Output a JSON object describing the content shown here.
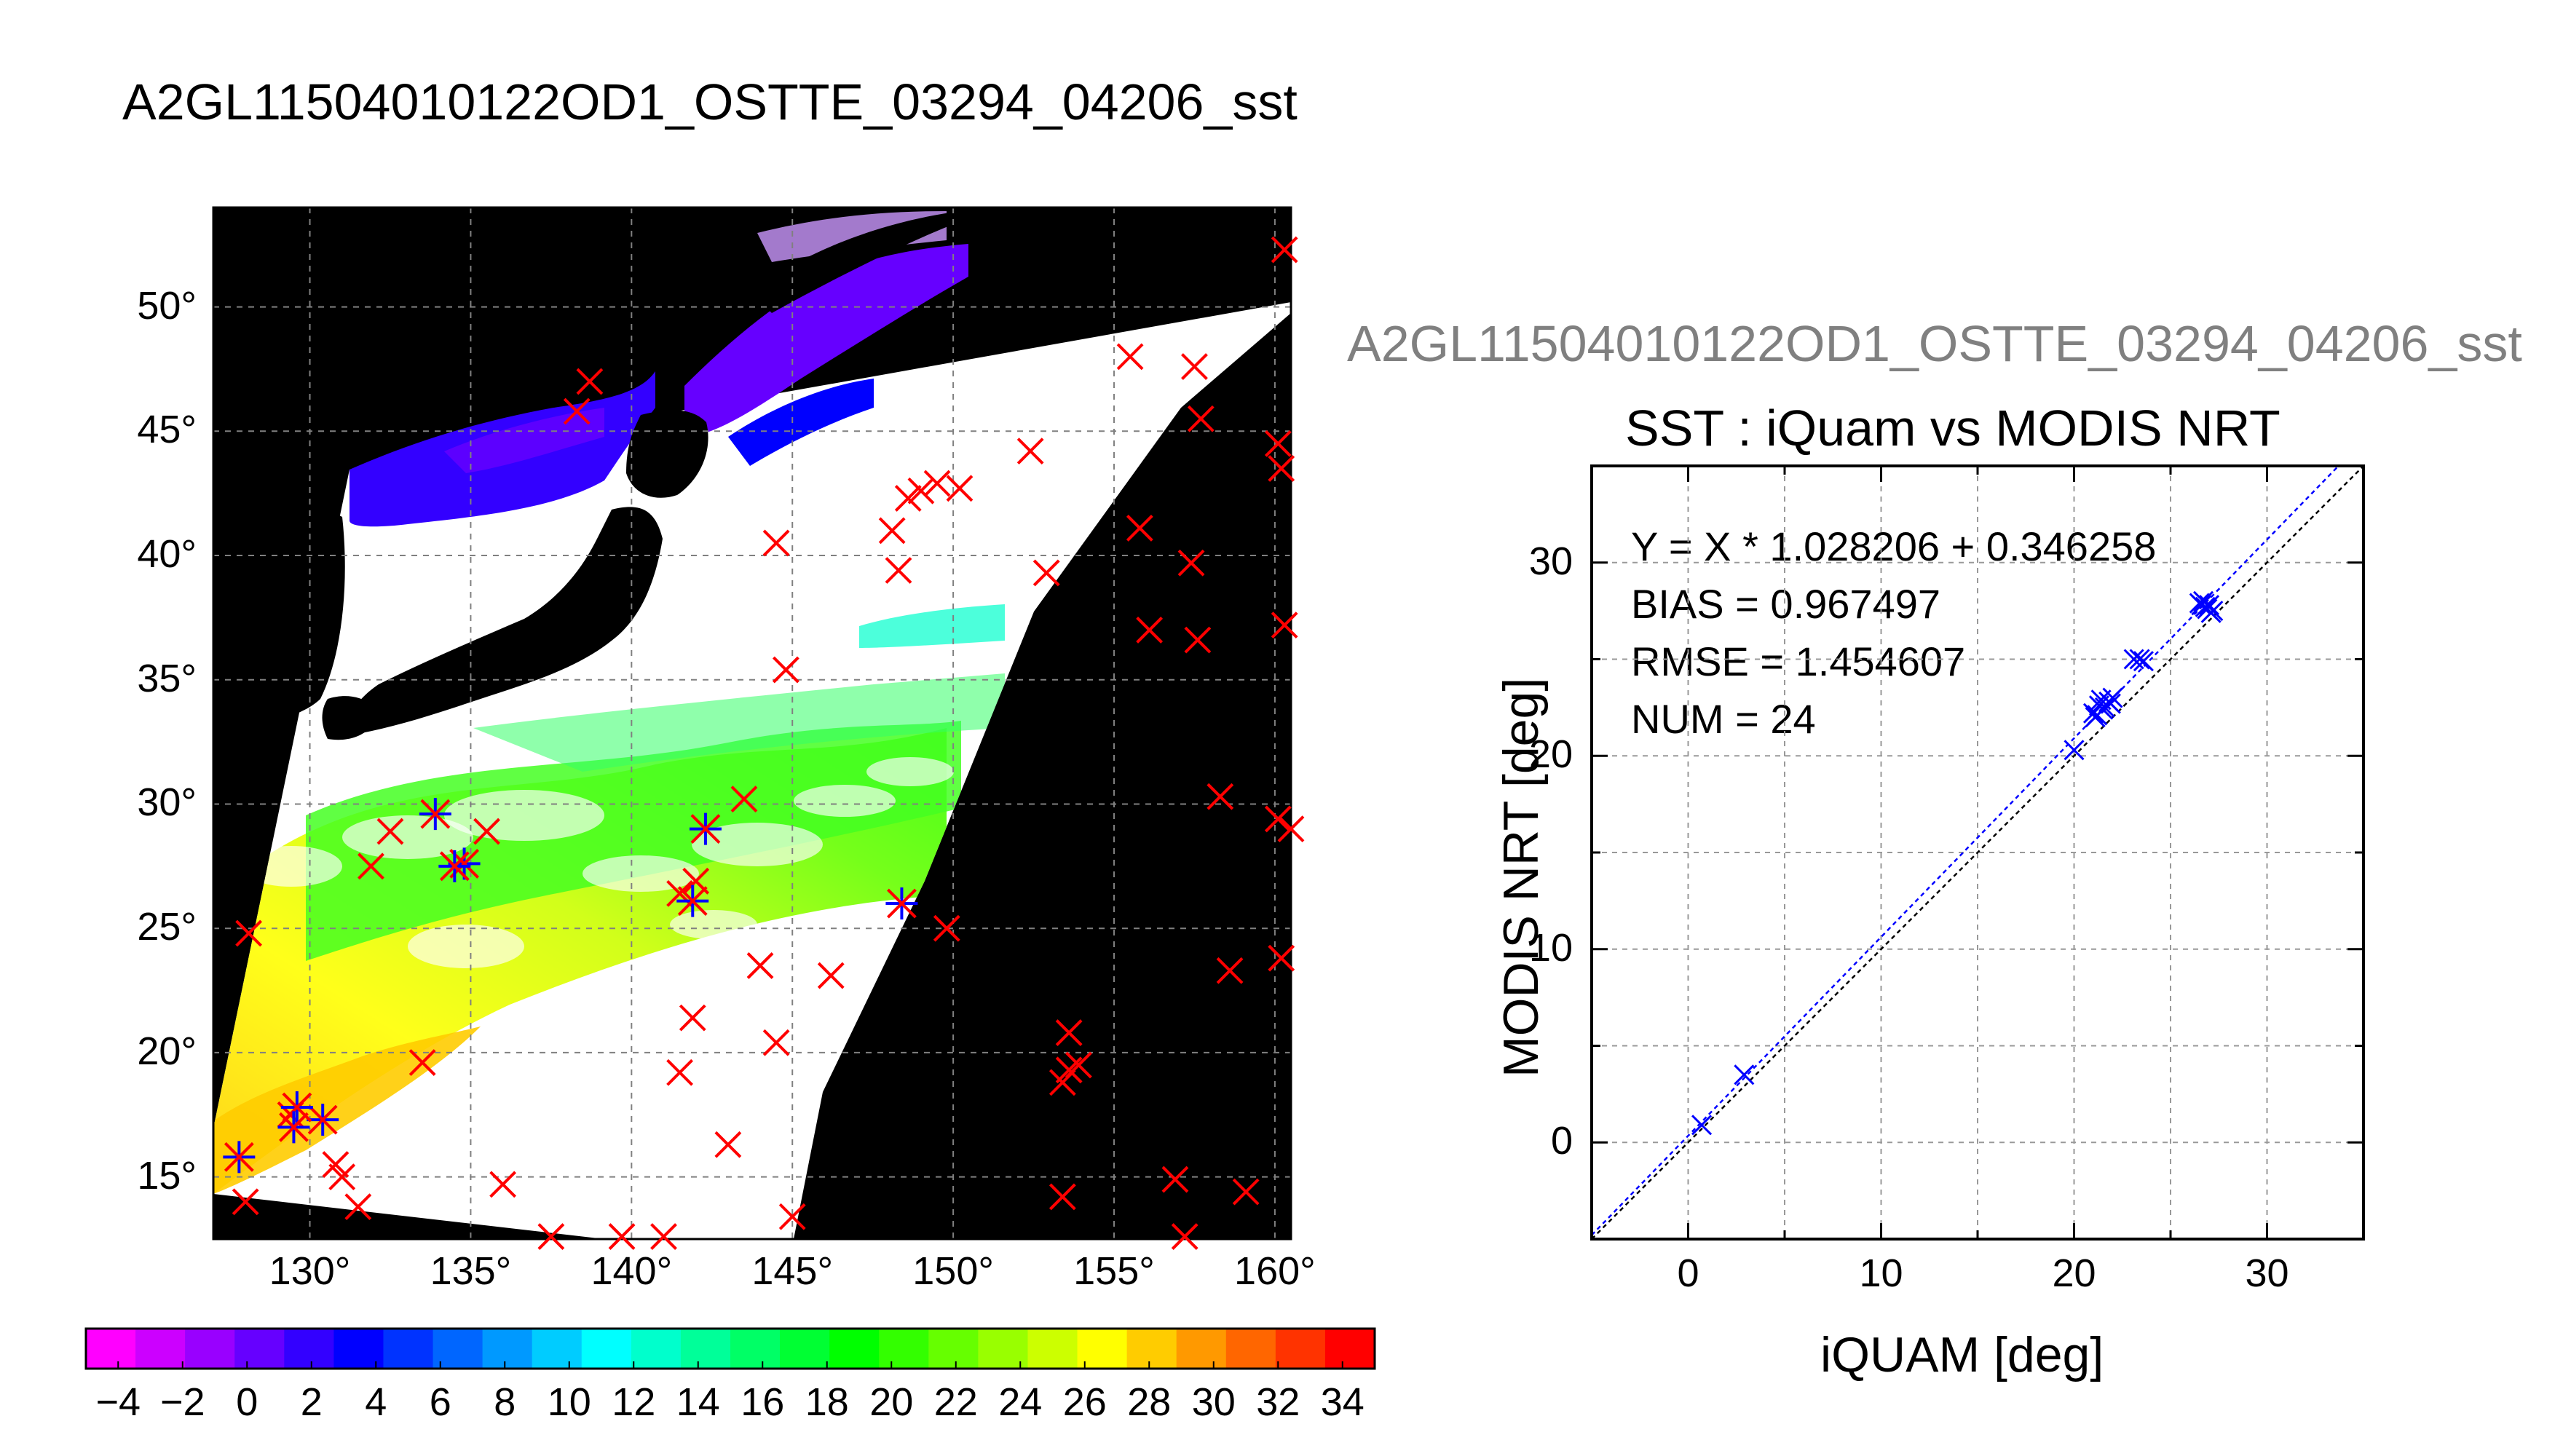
{
  "main_title": "A2GL11504010122OD1_OSTTE_03294_04206_sst",
  "scatter_title_overflow": "A2GL11504010122OD1_OSTTE_03294_04206_sst",
  "chart_data": [
    {
      "type": "heatmap",
      "map_type": "satellite SST swath map",
      "x_ticks": [
        "130°",
        "135°",
        "140°",
        "145°",
        "150°",
        "155°",
        "160°"
      ],
      "y_ticks": [
        "15°",
        "20°",
        "25°",
        "30°",
        "35°",
        "40°",
        "45°",
        "50°"
      ],
      "x_range": [
        127,
        160.5
      ],
      "y_range": [
        12.5,
        54
      ],
      "colorbar": {
        "ticks": [
          "−4",
          "−2",
          "0",
          "2",
          "4",
          "6",
          "8",
          "10",
          "12",
          "14",
          "16",
          "18",
          "20",
          "22",
          "24",
          "26",
          "28",
          "30",
          "32",
          "34"
        ],
        "range": [
          -5,
          35
        ],
        "colors": [
          "#ff00ff",
          "#cc00ff",
          "#9900ff",
          "#6600ff",
          "#3300ff",
          "#0000ff",
          "#0033ff",
          "#0066ff",
          "#0099ff",
          "#00ccff",
          "#00ffff",
          "#00ffcc",
          "#00ff99",
          "#00ff66",
          "#00ff33",
          "#00ff00",
          "#33ff00",
          "#66ff00",
          "#99ff00",
          "#ccff00",
          "#ffff00",
          "#ffcc00",
          "#ff9900",
          "#ff6600",
          "#ff3300",
          "#ff0000"
        ]
      },
      "matchups": [
        [
          130.4,
          17.3
        ],
        [
          129.6,
          17.8
        ],
        [
          133.9,
          29.6
        ],
        [
          134.8,
          27.6
        ],
        [
          142.3,
          29.0
        ],
        [
          141.9,
          26.1
        ],
        [
          148.4,
          26.0
        ],
        [
          127.8,
          15.8
        ],
        [
          129.5,
          17.0
        ],
        [
          134.5,
          27.5
        ]
      ],
      "other_points": [
        [
          160.3,
          52.3
        ],
        [
          128.1,
          24.8
        ],
        [
          129.4,
          17.5
        ],
        [
          128.0,
          14.0
        ],
        [
          130.8,
          15.5
        ],
        [
          131.5,
          13.8
        ],
        [
          131.9,
          27.5
        ],
        [
          132.5,
          28.9
        ],
        [
          133.5,
          19.6
        ],
        [
          135.5,
          28.9
        ],
        [
          136.0,
          14.7
        ],
        [
          137.5,
          12.6
        ],
        [
          139.7,
          12.6
        ],
        [
          141.0,
          12.6
        ],
        [
          141.5,
          19.2
        ],
        [
          141.9,
          21.4
        ],
        [
          141.5,
          26.4
        ],
        [
          142.0,
          26.9
        ],
        [
          143.0,
          16.3
        ],
        [
          143.5,
          30.2
        ],
        [
          144.0,
          23.5
        ],
        [
          144.5,
          20.4
        ],
        [
          144.8,
          35.4
        ],
        [
          144.5,
          40.5
        ],
        [
          145.0,
          13.4
        ],
        [
          146.2,
          23.1
        ],
        [
          148.1,
          41.0
        ],
        [
          148.3,
          39.4
        ],
        [
          148.6,
          42.3
        ],
        [
          149.0,
          42.6
        ],
        [
          149.5,
          42.9
        ],
        [
          149.8,
          25.0
        ],
        [
          150.2,
          42.7
        ],
        [
          152.4,
          44.2
        ],
        [
          152.9,
          39.3
        ],
        [
          153.4,
          14.2
        ],
        [
          153.6,
          20.8
        ],
        [
          153.4,
          18.8
        ],
        [
          153.6,
          19.3
        ],
        [
          153.9,
          19.5
        ],
        [
          156.1,
          37.0
        ],
        [
          156.9,
          14.9
        ],
        [
          157.2,
          12.6
        ],
        [
          157.6,
          36.6
        ],
        [
          157.4,
          39.7
        ],
        [
          157.7,
          45.5
        ],
        [
          157.5,
          47.6
        ],
        [
          155.5,
          48.0
        ],
        [
          155.8,
          41.1
        ],
        [
          158.3,
          30.3
        ],
        [
          158.6,
          23.3
        ],
        [
          159.1,
          14.4
        ],
        [
          160.1,
          44.5
        ],
        [
          160.2,
          43.5
        ],
        [
          160.3,
          37.2
        ],
        [
          160.1,
          29.4
        ],
        [
          160.2,
          23.8
        ],
        [
          160.5,
          29.0
        ],
        [
          131.0,
          15.0
        ],
        [
          138.3,
          45.8
        ],
        [
          138.7,
          47.0
        ]
      ]
    },
    {
      "type": "scatter",
      "title": "SST : iQuam vs MODIS NRT",
      "xlabel": "iQUAM [deg]",
      "ylabel": "MODIS NRT [deg]",
      "xlim": [
        -5,
        35
      ],
      "ylim": [
        -5,
        35
      ],
      "x_ticks": [
        "0",
        "10",
        "20",
        "30"
      ],
      "y_ticks": [
        "0",
        "10",
        "20",
        "30"
      ],
      "grid": true,
      "annotations": [
        "Y = X * 1.028206 + 0.346258",
        "BIAS = 0.967497",
        "RMSE = 1.454607",
        "NUM = 24"
      ],
      "fit": {
        "slope": 1.028206,
        "intercept": 0.346258
      },
      "x": [
        0.7,
        2.9,
        20.0,
        21.0,
        21.3,
        21.4,
        21.5,
        21.8,
        22.0,
        21.2,
        23.1,
        23.6,
        26.5,
        26.8,
        27.0,
        27.1,
        26.9,
        26.7,
        21.6,
        21.9,
        21.1,
        26.6,
        27.2,
        23.4
      ],
      "y": [
        0.9,
        3.5,
        20.3,
        22.2,
        22.6,
        22.9,
        22.4,
        22.8,
        23.0,
        22.1,
        25.0,
        24.9,
        27.9,
        27.7,
        27.8,
        27.4,
        27.6,
        28.0,
        22.5,
        22.7,
        22.0,
        27.8,
        27.5,
        25.0
      ],
      "point_color": "#0000ff"
    }
  ]
}
